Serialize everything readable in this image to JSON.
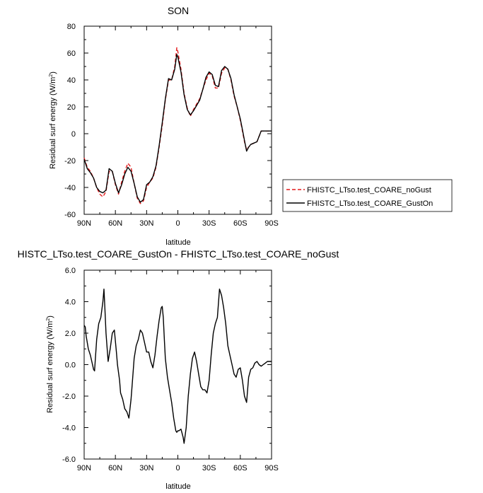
{
  "chart_data": [
    {
      "type": "line",
      "title": "SON",
      "xlabel": "latitude",
      "ylabel": "Residual surf energy (W/m",
      "ylabel_sup": "2",
      "ylabel_tail": ")",
      "xlim": [
        90,
        -90
      ],
      "ylim": [
        -60,
        80
      ],
      "xticks": [
        90,
        60,
        30,
        0,
        -30,
        -60,
        -90
      ],
      "xtick_labels": [
        "90N",
        "60N",
        "30N",
        "0",
        "30S",
        "60S",
        "90S"
      ],
      "yticks": [
        -60,
        -40,
        -20,
        0,
        20,
        40,
        60,
        80
      ],
      "ytick_labels": [
        "-60",
        "-40",
        "-20",
        "0",
        "20",
        "40",
        "60",
        "80"
      ],
      "legend_position": "right",
      "series": [
        {
          "name": "FHISTC_LTso.test_COARE_noGust",
          "color": "#e41a1c",
          "dash": "dashed",
          "x": [
            90,
            87,
            84,
            81,
            78,
            75,
            72,
            69,
            66,
            63,
            60,
            57,
            54,
            51,
            48,
            45,
            42,
            39,
            36,
            33,
            30,
            27,
            24,
            21,
            18,
            15,
            12,
            9,
            6,
            3,
            1,
            0,
            -3,
            -6,
            -9,
            -12,
            -15,
            -18,
            -21,
            -24,
            -27,
            -30,
            -33,
            -36,
            -39,
            -42,
            -45,
            -48,
            -51,
            -54,
            -57,
            -60,
            -62,
            -64,
            -66,
            -68,
            -70,
            -73,
            -76,
            -80,
            -84,
            -90
          ],
          "y": [
            -18,
            -25,
            -28,
            -33,
            -40,
            -45,
            -47,
            -43,
            -28,
            -28,
            -38,
            -45,
            -36,
            -28,
            -22,
            -25,
            -37,
            -48,
            -52,
            -50,
            -40,
            -36,
            -33,
            -25,
            -10,
            6,
            25,
            40,
            40,
            50,
            64,
            61,
            48,
            30,
            19,
            13,
            18,
            22,
            26,
            33,
            40,
            45,
            43,
            34,
            34,
            45,
            49,
            48,
            40,
            28,
            20,
            10,
            2,
            -6,
            -12,
            -10,
            -8,
            -7,
            -6,
            2,
            2,
            2
          ]
        },
        {
          "name": "FHISTC_LTso.test_COARE_GustOn",
          "color": "#000000",
          "dash": "solid",
          "x": [
            90,
            87,
            84,
            81,
            78,
            75,
            72,
            69,
            66,
            63,
            60,
            57,
            54,
            51,
            48,
            45,
            42,
            39,
            36,
            33,
            30,
            27,
            24,
            21,
            18,
            15,
            12,
            9,
            6,
            3,
            1,
            0,
            -3,
            -6,
            -9,
            -12,
            -15,
            -18,
            -21,
            -24,
            -27,
            -30,
            -33,
            -36,
            -39,
            -42,
            -45,
            -48,
            -51,
            -54,
            -57,
            -60,
            -62,
            -64,
            -66,
            -68,
            -70,
            -73,
            -76,
            -80,
            -84,
            -90
          ],
          "y": [
            -19,
            -26,
            -29,
            -33,
            -40,
            -43,
            -44,
            -42,
            -26,
            -28,
            -37,
            -44,
            -38,
            -30,
            -25,
            -28,
            -37,
            -47,
            -51,
            -49,
            -38,
            -36,
            -32,
            -24,
            -9,
            8,
            26,
            41,
            40,
            48,
            59,
            57,
            46,
            29,
            18,
            14,
            17,
            21,
            25,
            33,
            42,
            46,
            44,
            36,
            35,
            47,
            50,
            48,
            41,
            29,
            20,
            11,
            3,
            -5,
            -13,
            -10,
            -8,
            -7,
            -6,
            2,
            2,
            2
          ]
        }
      ]
    },
    {
      "type": "line",
      "title": "HISTC_LTso.test_COARE_GustOn - FHISTC_LTso.test_COARE_noGust",
      "xlabel": "latitude",
      "ylabel": "Residual surf energy (W/m",
      "ylabel_sup": "2",
      "ylabel_tail": ")",
      "xlim": [
        90,
        -90
      ],
      "ylim": [
        -6,
        6
      ],
      "xticks": [
        90,
        60,
        30,
        0,
        -30,
        -60,
        -90
      ],
      "xtick_labels": [
        "90N",
        "60N",
        "30N",
        "0",
        "30S",
        "60S",
        "90S"
      ],
      "yticks": [
        -6,
        -4,
        -2,
        0,
        2,
        4,
        6
      ],
      "ytick_labels": [
        "-6.0",
        "-4.0",
        "-2.0",
        "0.0",
        "2.0",
        "4.0",
        "6.0"
      ],
      "series": [
        {
          "color": "#000000",
          "dash": "solid",
          "x": [
            90,
            89,
            88,
            86,
            84,
            82,
            81,
            80,
            78,
            76,
            74,
            72,
            71,
            70,
            69,
            67,
            65,
            63,
            61,
            59,
            58,
            56,
            55,
            53,
            51,
            49,
            47,
            45,
            44,
            42,
            40,
            38,
            36,
            34,
            32,
            30,
            28,
            26,
            24,
            22,
            20,
            18,
            16,
            15,
            14,
            13,
            12,
            10,
            8,
            6,
            4,
            2,
            1,
            0,
            -1,
            -3,
            -5,
            -6,
            -8,
            -10,
            -12,
            -14,
            -16,
            -18,
            -20,
            -22,
            -24,
            -26,
            -28,
            -30,
            -32,
            -34,
            -36,
            -38,
            -40,
            -42,
            -44,
            -46,
            -48,
            -50,
            -52,
            -54,
            -56,
            -58,
            -60,
            -62,
            -64,
            -66,
            -68,
            -70,
            -72,
            -74,
            -76,
            -78,
            -80,
            -82,
            -84,
            -86,
            -88,
            -90
          ],
          "y": [
            2.5,
            2.4,
            1.8,
            1.0,
            0.6,
            0.0,
            -0.3,
            -0.4,
            1.6,
            2.6,
            3.0,
            4.0,
            4.8,
            3.5,
            2.0,
            0.2,
            1.0,
            2.0,
            2.2,
            0.8,
            0.0,
            -1.0,
            -1.8,
            -2.2,
            -2.8,
            -3.0,
            -3.4,
            -2.2,
            -1.4,
            0.4,
            1.2,
            1.6,
            2.2,
            2.0,
            1.4,
            0.8,
            0.8,
            0.2,
            -0.2,
            0.6,
            1.8,
            2.8,
            3.6,
            3.7,
            3.0,
            1.6,
            0.4,
            -0.8,
            -1.6,
            -2.4,
            -3.4,
            -4.2,
            -4.3,
            -4.2,
            -4.2,
            -4.1,
            -4.6,
            -5.0,
            -4.0,
            -2.0,
            -0.6,
            0.4,
            0.8,
            0.2,
            -0.6,
            -1.4,
            -1.6,
            -1.6,
            -1.8,
            -1.0,
            0.6,
            2.0,
            2.6,
            3.0,
            4.8,
            4.4,
            3.6,
            2.6,
            1.2,
            0.6,
            0.0,
            -0.6,
            -0.8,
            -0.3,
            -0.2,
            -1.0,
            -2.0,
            -2.4,
            -0.8,
            -0.3,
            -0.2,
            0.1,
            0.2,
            0.0,
            -0.1,
            0.0,
            0.1,
            0.2,
            0.2,
            0.2
          ]
        }
      ]
    }
  ]
}
